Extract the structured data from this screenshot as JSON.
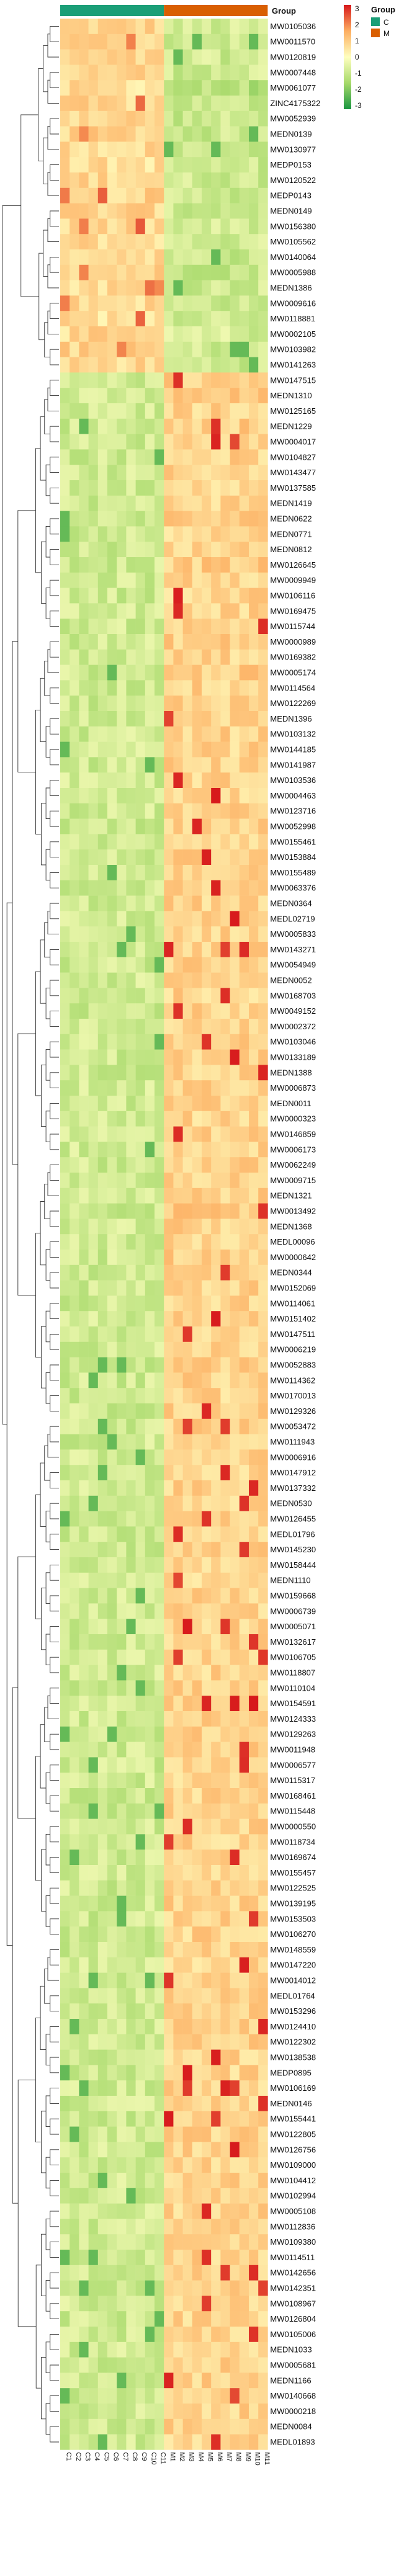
{
  "chart_data": {
    "type": "heatmap",
    "group_annotation_label": "Group",
    "groups": [
      {
        "name": "C",
        "color": "#1b9e77",
        "columns": 11
      },
      {
        "name": "M",
        "color": "#d95f02",
        "columns": 11
      }
    ],
    "columns": [
      "C1",
      "C2",
      "C3",
      "C4",
      "C5",
      "C6",
      "C7",
      "C8",
      "C9",
      "C10",
      "C11",
      "M1",
      "M2",
      "M3",
      "M4",
      "M5",
      "M6",
      "M7",
      "M8",
      "M9",
      "M10",
      "M11"
    ],
    "color_scale": {
      "min": -3,
      "max": 3,
      "ticks": [
        "3",
        "2",
        "1",
        "0",
        "-1",
        "-2",
        "-3"
      ],
      "colors": [
        "#1a9641",
        "#a6d96a",
        "#ffffbf",
        "#fdae61",
        "#d7191c"
      ]
    },
    "legend": {
      "title": "Group",
      "items": [
        "C",
        "M"
      ]
    },
    "rows": [
      {
        "name": "MW0105036",
        "c": 0.8,
        "m": -0.8
      },
      {
        "name": "MW0011570",
        "c": 0.9,
        "m": -0.9
      },
      {
        "name": "MW0120819",
        "c": 0.7,
        "m": -0.8
      },
      {
        "name": "MW0007448",
        "c": 0.8,
        "m": -0.8
      },
      {
        "name": "MW0061077",
        "c": 0.6,
        "m": -1.2
      },
      {
        "name": "ZINC4175322",
        "c": 0.7,
        "m": -0.9
      },
      {
        "name": "MW0052939",
        "c": 0.8,
        "m": -0.9
      },
      {
        "name": "MEDN0139",
        "c": 0.8,
        "m": -0.9
      },
      {
        "name": "MW0130977",
        "c": 0.7,
        "m": -0.8
      },
      {
        "name": "MEDP0153",
        "c": 0.6,
        "m": -0.9
      },
      {
        "name": "MW0120522",
        "c": 0.8,
        "m": -0.8
      },
      {
        "name": "MEDP0143",
        "c": 0.8,
        "m": -0.8
      },
      {
        "name": "MEDN0149",
        "c": 0.8,
        "m": -0.9
      },
      {
        "name": "MW0156380",
        "c": 0.7,
        "m": -0.8
      },
      {
        "name": "MW0105562",
        "c": 0.7,
        "m": -0.8
      },
      {
        "name": "MW0140064",
        "c": 0.8,
        "m": -0.9
      },
      {
        "name": "MW0005988",
        "c": 0.8,
        "m": -0.9
      },
      {
        "name": "MEDN1386",
        "c": 0.7,
        "m": -0.8
      },
      {
        "name": "MW0009616",
        "c": 0.7,
        "m": -0.8
      },
      {
        "name": "MW0118881",
        "c": 0.6,
        "m": -0.7
      },
      {
        "name": "MW0002105",
        "c": 0.7,
        "m": -0.7
      },
      {
        "name": "MW0103982",
        "c": 0.8,
        "m": -0.8
      },
      {
        "name": "MW0141263",
        "c": 0.7,
        "m": -0.8
      },
      {
        "name": "MW0147515",
        "c": -0.8,
        "m": 0.9
      },
      {
        "name": "MEDN1310",
        "c": -0.8,
        "m": 0.9
      },
      {
        "name": "MW0125165",
        "c": -0.8,
        "m": 0.8
      },
      {
        "name": "MEDN1229",
        "c": -0.8,
        "m": 0.9
      },
      {
        "name": "MW0004017",
        "c": -0.8,
        "m": 0.8
      },
      {
        "name": "MW0104827",
        "c": -0.8,
        "m": 0.8
      },
      {
        "name": "MW0143477",
        "c": -0.8,
        "m": 0.8
      },
      {
        "name": "MW0137585",
        "c": -0.8,
        "m": 0.8
      },
      {
        "name": "MEDN1419",
        "c": -0.8,
        "m": 0.8
      },
      {
        "name": "MEDN0622",
        "c": -0.8,
        "m": 0.9
      },
      {
        "name": "MEDN0771",
        "c": -0.8,
        "m": 0.8
      },
      {
        "name": "MEDN0812",
        "c": -0.8,
        "m": 0.8
      },
      {
        "name": "MW0126645",
        "c": -0.8,
        "m": 0.9
      },
      {
        "name": "MW0009949",
        "c": -0.8,
        "m": 0.8
      },
      {
        "name": "MW0106116",
        "c": -0.8,
        "m": 0.8
      },
      {
        "name": "MW0169475",
        "c": -0.8,
        "m": 0.8
      },
      {
        "name": "MW0115744",
        "c": -0.8,
        "m": 0.8
      },
      {
        "name": "MW0000989",
        "c": -0.8,
        "m": 0.9
      },
      {
        "name": "MW0169382",
        "c": -0.8,
        "m": 0.8
      },
      {
        "name": "MW0005174",
        "c": -0.8,
        "m": 0.9
      },
      {
        "name": "MW0114564",
        "c": -0.8,
        "m": 0.8
      },
      {
        "name": "MW0122269",
        "c": -0.8,
        "m": 0.9
      },
      {
        "name": "MEDN1396",
        "c": -0.8,
        "m": 0.8
      },
      {
        "name": "MW0103132",
        "c": -0.8,
        "m": 0.8
      },
      {
        "name": "MW0144185",
        "c": -0.8,
        "m": 0.8
      },
      {
        "name": "MW0141987",
        "c": -0.8,
        "m": 0.8
      },
      {
        "name": "MW0103536",
        "c": -0.8,
        "m": 0.8
      },
      {
        "name": "MW0004463",
        "c": -0.8,
        "m": 0.8
      },
      {
        "name": "MW0123716",
        "c": -0.8,
        "m": 0.8
      },
      {
        "name": "MW0052998",
        "c": -0.8,
        "m": 0.8
      },
      {
        "name": "MW0155461",
        "c": -0.8,
        "m": 0.8
      },
      {
        "name": "MW0153884",
        "c": -0.8,
        "m": 0.8
      },
      {
        "name": "MW0155489",
        "c": -0.8,
        "m": 0.9
      },
      {
        "name": "MW0063376",
        "c": -0.8,
        "m": 0.8
      },
      {
        "name": "MEDN0364",
        "c": -0.8,
        "m": 0.8
      },
      {
        "name": "MEDL02719",
        "c": -0.8,
        "m": 0.8
      },
      {
        "name": "MW0005833",
        "c": -0.8,
        "m": 0.8
      },
      {
        "name": "MW0143271",
        "c": -0.8,
        "m": 0.8
      },
      {
        "name": "MW0054949",
        "c": -0.8,
        "m": 0.8
      },
      {
        "name": "MEDN0052",
        "c": -0.8,
        "m": 0.8
      },
      {
        "name": "MW0168703",
        "c": -0.8,
        "m": 0.8
      },
      {
        "name": "MW0049152",
        "c": -0.8,
        "m": 0.8
      },
      {
        "name": "MW0002372",
        "c": -0.8,
        "m": 0.8
      },
      {
        "name": "MW0103046",
        "c": -0.8,
        "m": 0.8
      },
      {
        "name": "MW0133189",
        "c": -0.8,
        "m": 0.8
      },
      {
        "name": "MEDN1388",
        "c": -0.8,
        "m": 0.8
      },
      {
        "name": "MW0006873",
        "c": -0.8,
        "m": 0.8
      },
      {
        "name": "MEDN0011",
        "c": -0.8,
        "m": 0.8
      },
      {
        "name": "MW0000323",
        "c": -0.8,
        "m": 0.8
      },
      {
        "name": "MW0146859",
        "c": -0.8,
        "m": 0.8
      },
      {
        "name": "MW0006173",
        "c": -0.8,
        "m": 0.8
      },
      {
        "name": "MW0062249",
        "c": -0.8,
        "m": 0.8
      },
      {
        "name": "MW0009715",
        "c": -0.8,
        "m": 0.8
      },
      {
        "name": "MEDN1321",
        "c": -0.8,
        "m": 0.8
      },
      {
        "name": "MW0013492",
        "c": -0.8,
        "m": 0.9
      },
      {
        "name": "MEDN1368",
        "c": -0.8,
        "m": 0.8
      },
      {
        "name": "MEDL00096",
        "c": -0.8,
        "m": 0.8
      },
      {
        "name": "MW0000642",
        "c": -0.8,
        "m": 0.9
      },
      {
        "name": "MEDN0344",
        "c": -0.8,
        "m": 0.9
      },
      {
        "name": "MW0152069",
        "c": -0.8,
        "m": 0.8
      },
      {
        "name": "MW0114061",
        "c": -0.8,
        "m": 0.8
      },
      {
        "name": "MW0151402",
        "c": -0.8,
        "m": 0.8
      },
      {
        "name": "MW0147511",
        "c": -0.8,
        "m": 0.8
      },
      {
        "name": "MW0006219",
        "c": -0.8,
        "m": 0.8
      },
      {
        "name": "MW0052883",
        "c": -0.8,
        "m": 0.8
      },
      {
        "name": "MW0114362",
        "c": -0.8,
        "m": 0.8
      },
      {
        "name": "MW0170013",
        "c": -0.8,
        "m": 0.8
      },
      {
        "name": "MW0129326",
        "c": -0.8,
        "m": 0.8
      },
      {
        "name": "MW0053472",
        "c": -0.8,
        "m": 0.8
      },
      {
        "name": "MW0111943",
        "c": -0.8,
        "m": 0.8
      },
      {
        "name": "MW0006916",
        "c": -0.8,
        "m": 0.8
      },
      {
        "name": "MW0147912",
        "c": -0.8,
        "m": 0.8
      },
      {
        "name": "MW0137332",
        "c": -0.8,
        "m": 0.8
      },
      {
        "name": "MEDN0530",
        "c": -0.8,
        "m": 0.8
      },
      {
        "name": "MW0126455",
        "c": -0.8,
        "m": 0.8
      },
      {
        "name": "MEDL01796",
        "c": -0.8,
        "m": 0.8
      },
      {
        "name": "MW0145230",
        "c": -0.8,
        "m": 0.8
      },
      {
        "name": "MW0158444",
        "c": -0.8,
        "m": 0.8
      },
      {
        "name": "MEDN1110",
        "c": -0.8,
        "m": 0.8
      },
      {
        "name": "MW0159668",
        "c": -0.8,
        "m": 0.8
      },
      {
        "name": "MW0006739",
        "c": -0.8,
        "m": 0.8
      },
      {
        "name": "MW0005071",
        "c": -0.8,
        "m": 0.8
      },
      {
        "name": "MW0132617",
        "c": -0.8,
        "m": 0.8
      },
      {
        "name": "MW0106705",
        "c": -0.8,
        "m": 0.8
      },
      {
        "name": "MW0118807",
        "c": -0.8,
        "m": 0.8
      },
      {
        "name": "MW0110104",
        "c": -0.8,
        "m": 0.8
      },
      {
        "name": "MW0154591",
        "c": -0.8,
        "m": 0.8
      },
      {
        "name": "MW0124333",
        "c": -0.8,
        "m": 0.8
      },
      {
        "name": "MW0129263",
        "c": -0.8,
        "m": 0.8
      },
      {
        "name": "MW0011948",
        "c": -0.8,
        "m": 0.8
      },
      {
        "name": "MW0006577",
        "c": -0.8,
        "m": 0.8
      },
      {
        "name": "MW0115317",
        "c": -0.8,
        "m": 0.8
      },
      {
        "name": "MW0168461",
        "c": -0.8,
        "m": 0.8
      },
      {
        "name": "MW0115448",
        "c": -0.8,
        "m": 0.8
      },
      {
        "name": "MW0000550",
        "c": -0.8,
        "m": 0.8
      },
      {
        "name": "MW0118734",
        "c": -0.8,
        "m": 0.8
      },
      {
        "name": "MW0169674",
        "c": -0.8,
        "m": 0.8
      },
      {
        "name": "MW0155457",
        "c": -0.8,
        "m": 0.8
      },
      {
        "name": "MW0122525",
        "c": -0.8,
        "m": 0.8
      },
      {
        "name": "MW0139195",
        "c": -0.8,
        "m": 0.8
      },
      {
        "name": "MW0153503",
        "c": -0.8,
        "m": 0.8
      },
      {
        "name": "MW0106270",
        "c": -0.8,
        "m": 0.8
      },
      {
        "name": "MW0148559",
        "c": -0.8,
        "m": 0.8
      },
      {
        "name": "MW0147220",
        "c": -0.8,
        "m": 0.8
      },
      {
        "name": "MW0014012",
        "c": -0.8,
        "m": 0.8
      },
      {
        "name": "MEDL01764",
        "c": -0.8,
        "m": 0.8
      },
      {
        "name": "MW0153296",
        "c": -0.8,
        "m": 0.8
      },
      {
        "name": "MW0124410",
        "c": -0.8,
        "m": 0.8
      },
      {
        "name": "MW0122302",
        "c": -0.8,
        "m": 0.8
      },
      {
        "name": "MW0138538",
        "c": -0.8,
        "m": 0.8
      },
      {
        "name": "MEDP0895",
        "c": -0.8,
        "m": 0.8
      },
      {
        "name": "MW0106169",
        "c": -0.8,
        "m": 0.8
      },
      {
        "name": "MEDN0146",
        "c": -0.8,
        "m": 0.8
      },
      {
        "name": "MW0155441",
        "c": -0.8,
        "m": 0.8
      },
      {
        "name": "MW0122805",
        "c": -0.8,
        "m": 0.8
      },
      {
        "name": "MW0126756",
        "c": -0.8,
        "m": 0.8
      },
      {
        "name": "MW0109000",
        "c": -0.8,
        "m": 0.8
      },
      {
        "name": "MW0104412",
        "c": -0.8,
        "m": 0.8
      },
      {
        "name": "MW0102994",
        "c": -0.8,
        "m": 0.8
      },
      {
        "name": "MW0005108",
        "c": -0.8,
        "m": 0.8
      },
      {
        "name": "MW0112836",
        "c": -0.8,
        "m": 0.8
      },
      {
        "name": "MW0109380",
        "c": -0.8,
        "m": 0.8
      },
      {
        "name": "MW0114511",
        "c": -0.8,
        "m": 0.8
      },
      {
        "name": "MW0142656",
        "c": -0.8,
        "m": 0.8
      },
      {
        "name": "MW0142351",
        "c": -0.8,
        "m": 0.8
      },
      {
        "name": "MW0108967",
        "c": -0.8,
        "m": 0.8
      },
      {
        "name": "MW0126804",
        "c": -0.8,
        "m": 0.8
      },
      {
        "name": "MW0105006",
        "c": -0.8,
        "m": 0.8
      },
      {
        "name": "MEDN1033",
        "c": -0.8,
        "m": 0.8
      },
      {
        "name": "MW0005681",
        "c": -0.8,
        "m": 0.8
      },
      {
        "name": "MEDN1166",
        "c": -0.8,
        "m": 0.8
      },
      {
        "name": "MW0140668",
        "c": -0.8,
        "m": 0.8
      },
      {
        "name": "MW0000218",
        "c": -0.8,
        "m": 0.8
      },
      {
        "name": "MEDN0084",
        "c": -0.8,
        "m": 0.8
      },
      {
        "name": "MEDL01893",
        "c": -0.8,
        "m": 0.8
      }
    ]
  }
}
